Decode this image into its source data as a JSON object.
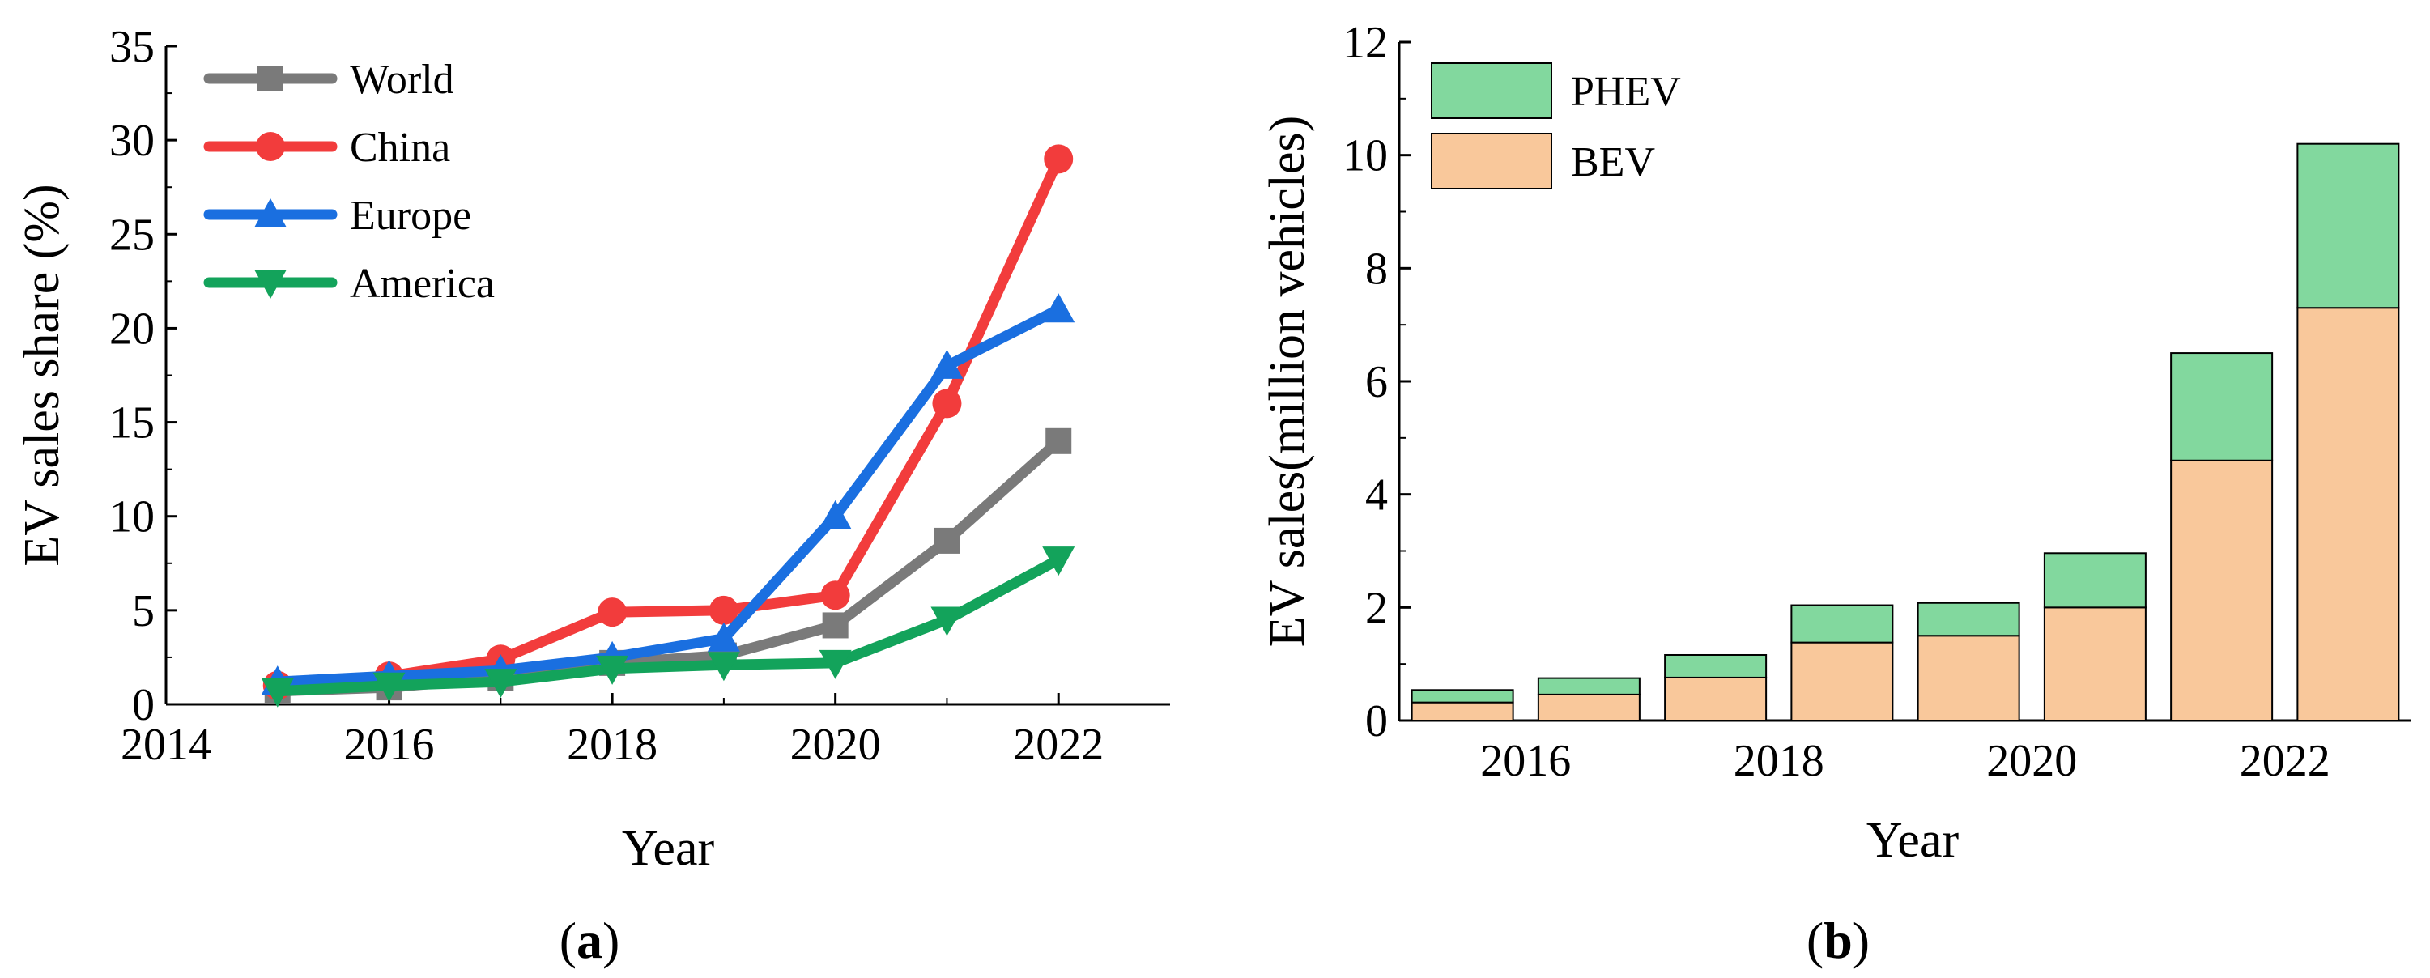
{
  "chart_data": [
    {
      "type": "line",
      "panel": "a",
      "panel_label": "a",
      "xlabel": "Year",
      "ylabel": "EV sales share (%)",
      "xlim": [
        2014,
        2023
      ],
      "ylim": [
        0,
        35
      ],
      "xticks": [
        2014,
        2016,
        2018,
        2020,
        2022
      ],
      "yticks": [
        0,
        5,
        10,
        15,
        20,
        25,
        30,
        35
      ],
      "x": [
        2015,
        2016,
        2017,
        2018,
        2019,
        2020,
        2021,
        2022
      ],
      "legend_position": "top-left",
      "series": [
        {
          "name": "World",
          "color": "#7a7a7a",
          "marker": "square",
          "values": [
            0.7,
            0.9,
            1.4,
            2.2,
            2.6,
            4.2,
            8.7,
            14.0
          ]
        },
        {
          "name": "China",
          "color": "#f23c3c",
          "marker": "circle",
          "values": [
            1.0,
            1.5,
            2.4,
            4.9,
            5.0,
            5.8,
            16.0,
            29.0
          ]
        },
        {
          "name": "Europe",
          "color": "#1a6fe0",
          "marker": "triangle-up",
          "values": [
            1.2,
            1.5,
            1.8,
            2.5,
            3.5,
            10.0,
            18.0,
            21.0
          ]
        },
        {
          "name": "America",
          "color": "#13a35b",
          "marker": "triangle-down",
          "values": [
            0.7,
            1.0,
            1.2,
            1.9,
            2.1,
            2.2,
            4.5,
            7.7
          ]
        }
      ]
    },
    {
      "type": "bar",
      "stacked": true,
      "panel": "b",
      "panel_label": "b",
      "xlabel": "Year",
      "ylabel": "EV sales(million vehicles)",
      "ylim": [
        0,
        12
      ],
      "yticks": [
        0,
        2,
        4,
        6,
        8,
        10,
        12
      ],
      "categories": [
        "2015",
        "2016",
        "2017",
        "2018",
        "2019",
        "2020",
        "2021",
        "2022"
      ],
      "xtick_labels": [
        "2016",
        "2018",
        "2020",
        "2022"
      ],
      "legend_position": "top-left",
      "series": [
        {
          "name": "BEV",
          "color": "#f9c89b",
          "values": [
            0.32,
            0.46,
            0.76,
            1.38,
            1.5,
            2.0,
            4.6,
            7.3
          ]
        },
        {
          "name": "PHEV",
          "color": "#82d89e",
          "values": [
            0.22,
            0.29,
            0.4,
            0.66,
            0.58,
            0.96,
            1.9,
            2.9
          ]
        }
      ],
      "legend_order": [
        "PHEV",
        "BEV"
      ]
    }
  ]
}
